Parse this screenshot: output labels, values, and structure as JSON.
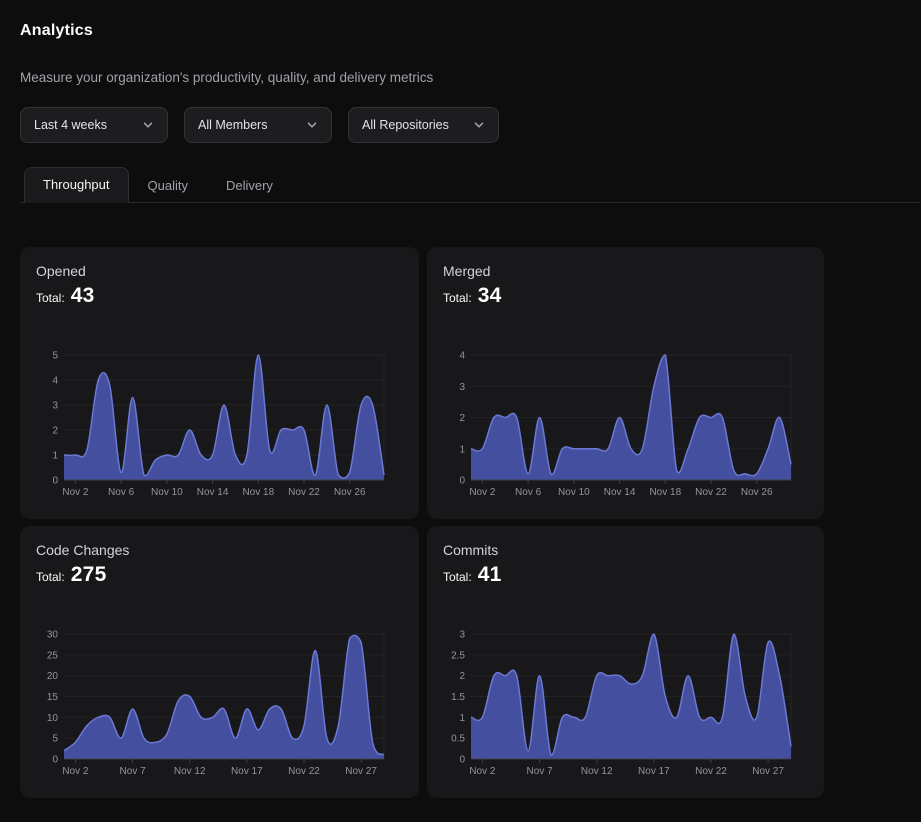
{
  "page": {
    "title": "Analytics",
    "subtitle": "Measure your organization's productivity, quality, and delivery metrics"
  },
  "filters": [
    {
      "value": "Last 4 weeks"
    },
    {
      "value": "All Members"
    },
    {
      "value": "All Repositories"
    }
  ],
  "tabs": [
    {
      "label": "Throughput",
      "active": true
    },
    {
      "label": "Quality",
      "active": false
    },
    {
      "label": "Delivery",
      "active": false
    }
  ],
  "labels": {
    "total": "Total:"
  },
  "colors": {
    "chart_fill": "#4a55ab",
    "chart_stroke": "#6b79d4",
    "grid": "#232327",
    "axis": "#3f3f46",
    "tick_text": "#94949c"
  },
  "chart_data": [
    {
      "type": "area",
      "title": "Opened",
      "total": 43,
      "y_ticks": [
        0,
        1,
        2,
        3,
        4,
        5
      ],
      "x_tick_labels": [
        "Nov 2",
        "Nov 6",
        "Nov 10",
        "Nov 14",
        "Nov 18",
        "Nov 22",
        "Nov 26"
      ],
      "x_tick_indices": [
        1,
        5,
        9,
        13,
        17,
        21,
        25
      ],
      "values": [
        1,
        1,
        1.2,
        4,
        3.8,
        0.3,
        3.3,
        0.2,
        0.8,
        1,
        1,
        2,
        1,
        1,
        3,
        1,
        1,
        5,
        1.2,
        2,
        2,
        2,
        0.2,
        3,
        0.2,
        0.3,
        3,
        3,
        0.2
      ]
    },
    {
      "type": "area",
      "title": "Merged",
      "total": 34,
      "y_ticks": [
        0,
        1,
        2,
        3,
        4
      ],
      "x_tick_labels": [
        "Nov 2",
        "Nov 6",
        "Nov 10",
        "Nov 14",
        "Nov 18",
        "Nov 22",
        "Nov 26"
      ],
      "x_tick_indices": [
        1,
        5,
        9,
        13,
        17,
        21,
        25
      ],
      "values": [
        1,
        1,
        2,
        2,
        2,
        0.2,
        2,
        0.2,
        1,
        1,
        1,
        1,
        1,
        2,
        1,
        1,
        3,
        4,
        0.3,
        1,
        2,
        2,
        2,
        0.3,
        0.2,
        0.2,
        1,
        2,
        0.5
      ]
    },
    {
      "type": "area",
      "title": "Code Changes",
      "total": 275,
      "y_ticks": [
        0,
        5,
        10,
        15,
        20,
        25,
        30
      ],
      "x_tick_labels": [
        "Nov 2",
        "Nov 7",
        "Nov 12",
        "Nov 17",
        "Nov 22",
        "Nov 27"
      ],
      "x_tick_indices": [
        1,
        6,
        11,
        16,
        21,
        26
      ],
      "values": [
        2,
        4,
        8,
        10,
        10,
        5,
        12,
        5,
        4,
        6,
        14,
        15,
        10,
        10,
        12,
        5,
        12,
        7,
        12,
        12,
        5,
        8,
        26,
        5,
        8,
        29,
        28,
        4,
        1
      ]
    },
    {
      "type": "area",
      "title": "Commits",
      "total": 41,
      "y_ticks": [
        0,
        0.5,
        1,
        1.5,
        2,
        2.5,
        3
      ],
      "x_tick_labels": [
        "Nov 2",
        "Nov 7",
        "Nov 12",
        "Nov 17",
        "Nov 22",
        "Nov 27"
      ],
      "x_tick_indices": [
        1,
        6,
        11,
        16,
        21,
        26
      ],
      "values": [
        1,
        1,
        2,
        2,
        2,
        0.2,
        2,
        0.1,
        1,
        1,
        1,
        2,
        2,
        2,
        1.8,
        2,
        3,
        1.5,
        1,
        2,
        1,
        1,
        1,
        3,
        1.5,
        1,
        2.8,
        2,
        0.3
      ]
    }
  ]
}
